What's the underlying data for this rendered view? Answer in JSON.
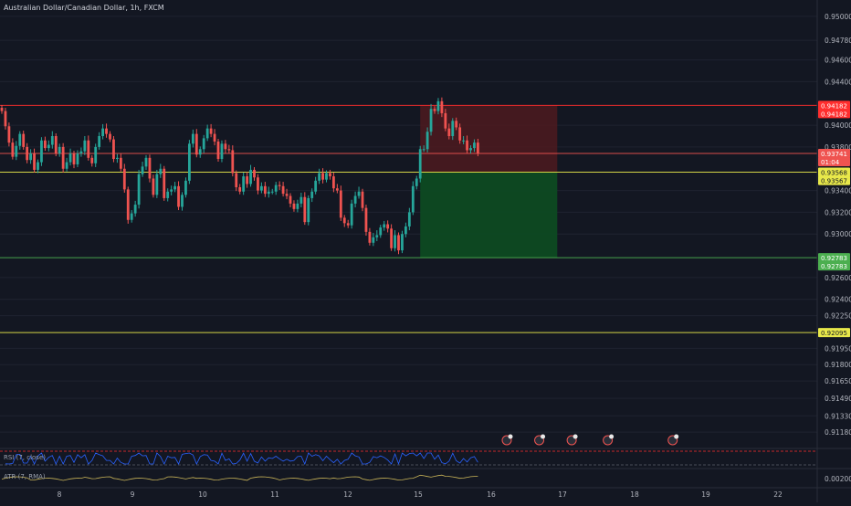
{
  "header": {
    "title": "Australian Dollar/Canadian Dollar, 1h, FXCM"
  },
  "indicators": {
    "rsi_label": "RSI (7, close)",
    "atr_label": "ATR (7, RMA)",
    "atr_value": "0.00200"
  },
  "colors": {
    "background": "#131722",
    "up": "#26a69a",
    "down": "#ef5350",
    "red_line": "#ff2e2e",
    "yellow_line": "#e8e84a",
    "green_line": "#4caf50",
    "loss_zone": "#4a1a1f",
    "profit_zone": "#0d4a22",
    "axis_text": "#b2b5be",
    "grid": "#1f2330",
    "rsi_line": "#2962ff",
    "atr_line": "#c9b458"
  },
  "chart_data": {
    "type": "candlestick",
    "symbol": "Australian Dollar/Canadian Dollar",
    "interval": "1h",
    "source": "FXCM",
    "ylim": [
      0.9103,
      0.951
    ],
    "y_ticks": [
      "0.95000",
      "0.94780",
      "0.94600",
      "0.94400",
      "0.94000",
      "0.93800",
      "0.93400",
      "0.93200",
      "0.93000",
      "0.92600",
      "0.92400",
      "0.92250",
      "0.91950",
      "0.91800",
      "0.91650",
      "0.91490",
      "0.91330",
      "0.91180"
    ],
    "x_labels": [
      "8",
      "9",
      "10",
      "11",
      "12",
      "15",
      "16",
      "17",
      "18",
      "19",
      "22"
    ],
    "price_labels": [
      {
        "value": 0.94182,
        "text": "0.94182",
        "color": "#ff2e2e"
      },
      {
        "value": 0.94182,
        "text": "0.94182",
        "color": "#ff2e2e",
        "offset": 1
      },
      {
        "value": 0.93741,
        "text": "0.93741",
        "color": "#ef5350"
      },
      {
        "value": 0.93741,
        "text": "01:04",
        "color": "#ef5350",
        "offset": 1
      },
      {
        "value": 0.93568,
        "text": "0.93568",
        "color": "#e8e84a"
      },
      {
        "value": 0.93567,
        "text": "0.93567",
        "color": "#e8e84a",
        "offset": 1
      },
      {
        "value": 0.92783,
        "text": "0.92783",
        "color": "#4caf50"
      },
      {
        "value": 0.92783,
        "text": "0.92783",
        "color": "#4caf50",
        "offset": 1
      },
      {
        "value": 0.92095,
        "text": "0.92095",
        "color": "#e8e84a"
      }
    ],
    "horizontal_lines": [
      {
        "value": 0.94182,
        "color": "#ff2e2e"
      },
      {
        "value": 0.93741,
        "color": "#ef5350"
      },
      {
        "value": 0.93568,
        "color": "#e8e84a"
      },
      {
        "value": 0.92783,
        "color": "#4caf50"
      },
      {
        "value": 0.92095,
        "color": "#e8e84a"
      }
    ],
    "position": {
      "entry": 0.93568,
      "stop": 0.94182,
      "target": 0.92783,
      "start_index": 116,
      "end_index": 154
    },
    "closes": [
      0.9413,
      0.9399,
      0.9384,
      0.9371,
      0.9381,
      0.9392,
      0.938,
      0.9368,
      0.9374,
      0.9359,
      0.9366,
      0.9386,
      0.9379,
      0.9382,
      0.939,
      0.9374,
      0.938,
      0.936,
      0.9366,
      0.9374,
      0.9364,
      0.9374,
      0.9376,
      0.9386,
      0.937,
      0.9365,
      0.938,
      0.939,
      0.9397,
      0.9392,
      0.9387,
      0.9369,
      0.937,
      0.936,
      0.9341,
      0.9313,
      0.9319,
      0.9327,
      0.9355,
      0.9362,
      0.937,
      0.9351,
      0.9336,
      0.9355,
      0.936,
      0.9333,
      0.9339,
      0.9341,
      0.9344,
      0.9325,
      0.9336,
      0.9349,
      0.9383,
      0.9392,
      0.9373,
      0.9378,
      0.9388,
      0.9397,
      0.9392,
      0.9385,
      0.9369,
      0.9383,
      0.9378,
      0.9377,
      0.9356,
      0.9343,
      0.9339,
      0.9353,
      0.9346,
      0.9359,
      0.9352,
      0.934,
      0.9344,
      0.9337,
      0.9339,
      0.9339,
      0.9345,
      0.9344,
      0.9337,
      0.9335,
      0.9328,
      0.9323,
      0.9328,
      0.9334,
      0.9311,
      0.9333,
      0.9339,
      0.9349,
      0.9356,
      0.935,
      0.9356,
      0.9353,
      0.9342,
      0.934,
      0.9315,
      0.931,
      0.9308,
      0.9328,
      0.9335,
      0.9339,
      0.9324,
      0.9302,
      0.9292,
      0.9297,
      0.9299,
      0.9306,
      0.9309,
      0.9305,
      0.9287,
      0.9299,
      0.9285,
      0.93,
      0.9307,
      0.932,
      0.9344,
      0.9351,
      0.9378,
      0.9378,
      0.9394,
      0.9415,
      0.9413,
      0.9422,
      0.9411,
      0.9397,
      0.939,
      0.9404,
      0.9398,
      0.9386,
      0.9386,
      0.9377,
      0.9379,
      0.9384,
      0.9374
    ],
    "markers": [
      {
        "label": "event",
        "x_index": 140
      },
      {
        "label": "event",
        "x_index": 149
      },
      {
        "label": "event",
        "x_index": 158
      },
      {
        "label": "event",
        "x_index": 168
      },
      {
        "label": "event",
        "x_index": 186
      }
    ],
    "rsi": {
      "range": [
        0,
        100
      ],
      "bands": [
        30,
        70
      ]
    },
    "atr": {
      "value": 0.002
    }
  }
}
